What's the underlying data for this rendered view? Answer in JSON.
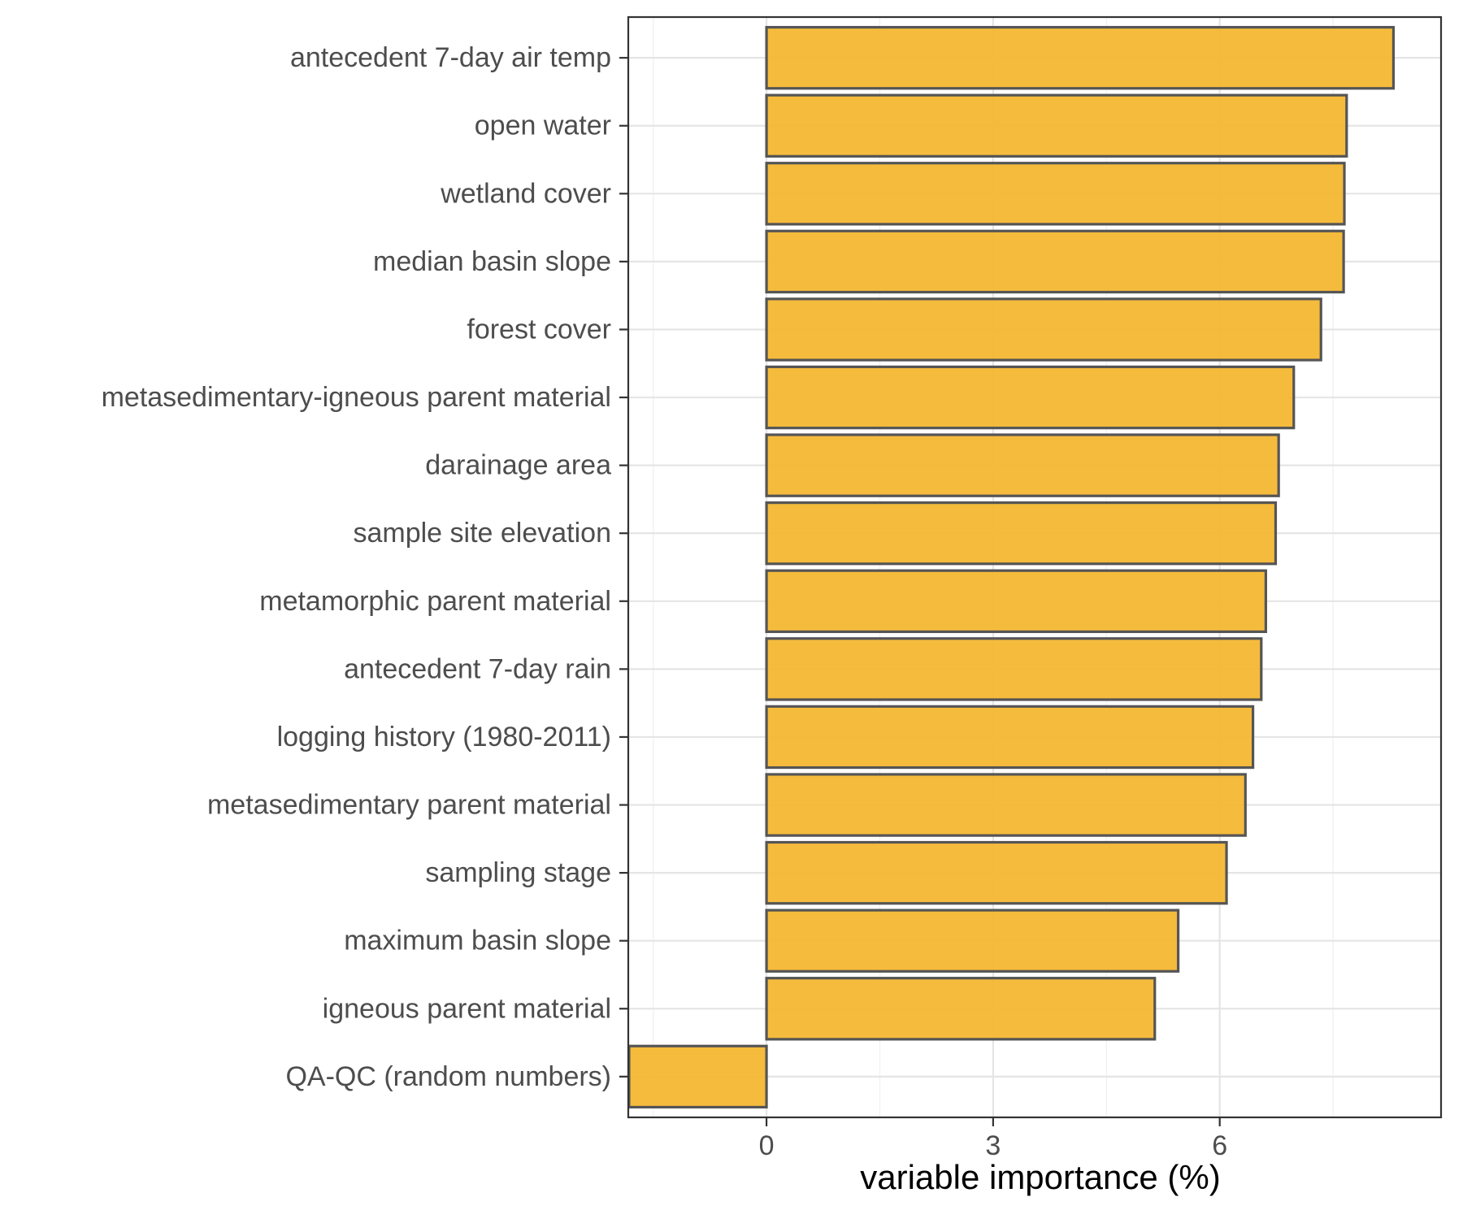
{
  "chart_data": {
    "type": "bar",
    "orientation": "horizontal",
    "title": "",
    "xlabel": "variable importance (%)",
    "ylabel": "",
    "xlim": [
      -1.83,
      8.93
    ],
    "x_ticks": [
      "0",
      "3",
      "6"
    ],
    "grid": true,
    "categories": [
      "antecedent 7-day air temp",
      "open water",
      "wetland cover",
      "median basin slope",
      "forest cover",
      "metasedimentary-igneous parent material",
      "darainage area",
      "sample site elevation",
      "metamorphic parent material",
      "antecedent 7-day rain",
      "logging history (1980-2011)",
      "metasedimentary parent material",
      "sampling stage",
      "maximum basin slope",
      "igneous parent material",
      "QA-QC (random numbers)"
    ],
    "values": [
      8.3,
      7.68,
      7.65,
      7.64,
      7.34,
      6.98,
      6.78,
      6.74,
      6.61,
      6.55,
      6.44,
      6.34,
      6.09,
      5.45,
      5.14,
      -1.82
    ]
  },
  "colors": {
    "bar_fill": "#f4b731",
    "bar_stroke": "#555555",
    "axis": "#333333",
    "grid_major": "#e5e5e5",
    "grid_minor": "#f0f0f0"
  }
}
